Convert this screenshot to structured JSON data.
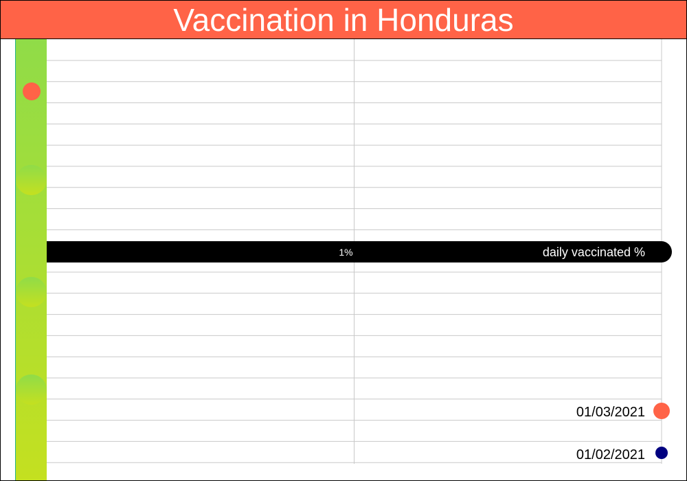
{
  "title": "Vaccination in Honduras",
  "colors": {
    "title_bg": "#ff6347",
    "title_text": "#ffffff",
    "accent": "#ff6347",
    "navy": "#000080",
    "band": "#000000",
    "grid": "#c8c8c8",
    "teal": "#20b28a"
  },
  "chart_data": {
    "type": "bar",
    "title": "Vaccination in Honduras",
    "gauge_label": "daily vaccinated %",
    "tick_label": "1%",
    "xlim": [
      0,
      2
    ],
    "legend": [
      {
        "label": "01/03/2021",
        "color": "#ff6347",
        "marker": "large-circle"
      },
      {
        "label": "01/02/2021",
        "color": "#000080",
        "marker": "small-circle"
      }
    ],
    "bar_gradient": [
      "#90dc48",
      "#c4e020"
    ],
    "grid": true,
    "legend_position": "bottom-right"
  }
}
